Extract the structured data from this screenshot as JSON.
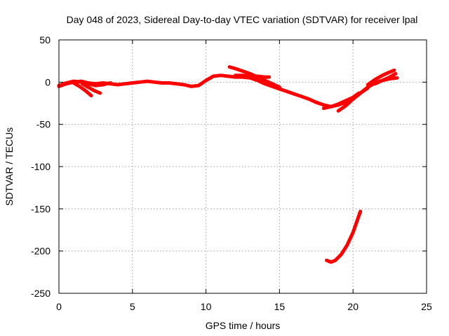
{
  "chart_data": {
    "type": "line",
    "title": "Day 048 of 2023, Sidereal Day-to-day VTEC variation (SDTVAR) for receiver lpal",
    "xlabel": "GPS time / hours",
    "ylabel": "SDTVAR / TECUs",
    "xlim": [
      0,
      25
    ],
    "ylim": [
      -250,
      50
    ],
    "xticks": [
      0,
      5,
      10,
      15,
      20,
      25
    ],
    "yticks": [
      50,
      0,
      -50,
      -100,
      -150,
      -200,
      -250
    ],
    "grid": true,
    "legend": "none",
    "series_color": "#ff0000",
    "series": [
      {
        "x": [
          0.0,
          0.5,
          1.0,
          1.5,
          2.0,
          2.5,
          3.0,
          3.5,
          4.0,
          4.5,
          5.0,
          5.5,
          6.0,
          6.5,
          7.0,
          7.5,
          8.0,
          8.5,
          9.0,
          9.5,
          10.0,
          10.5,
          11.0,
          11.5,
          12.0,
          12.5,
          13.0,
          13.5,
          14.0,
          14.5,
          15.0,
          15.5,
          16.0,
          16.5,
          17.0,
          17.5,
          18.0,
          18.5,
          19.0,
          19.5,
          20.0,
          20.5,
          21.0,
          21.5,
          22.0,
          22.5,
          23.0
        ],
        "values": [
          -5,
          -2,
          0,
          1,
          -1,
          -2,
          -1,
          -2,
          -3,
          -2,
          -1,
          0,
          1,
          0,
          -1,
          -1,
          -2,
          -3,
          -5,
          -4,
          2,
          7,
          8,
          7,
          6,
          6,
          5,
          2,
          -2,
          -5,
          -8,
          -11,
          -14,
          -17,
          -20,
          -24,
          -27,
          -29,
          -27,
          -24,
          -20,
          -13,
          -6,
          -1,
          2,
          4,
          5
        ]
      },
      {
        "x": [
          0.0,
          0.5,
          1.0,
          1.5,
          2.0,
          2.5,
          3.0,
          3.5
        ],
        "values": [
          -4,
          -1,
          1,
          0,
          -2,
          -4,
          -3,
          -1
        ]
      },
      {
        "x": [
          1.0,
          1.4,
          1.8,
          2.2
        ],
        "values": [
          -1,
          -5,
          -10,
          -16
        ]
      },
      {
        "x": [
          1.6,
          2.0,
          2.4,
          2.8
        ],
        "values": [
          -2,
          -6,
          -10,
          -13
        ]
      },
      {
        "x": [
          11.6,
          12.0,
          12.5,
          13.0,
          13.5,
          14.0,
          14.5,
          15.0
        ],
        "values": [
          18,
          16,
          13,
          10,
          6,
          2,
          -2,
          -6
        ]
      },
      {
        "x": [
          12.0,
          12.5,
          13.0,
          13.5,
          14.0,
          14.3
        ],
        "values": [
          8,
          8,
          7,
          7,
          6,
          6
        ]
      },
      {
        "x": [
          18.0,
          18.5,
          19.0,
          19.5,
          20.0,
          20.4
        ],
        "values": [
          -31,
          -29,
          -26,
          -22,
          -18,
          -13
        ]
      },
      {
        "x": [
          19.0,
          19.5,
          20.0,
          20.5,
          21.0
        ],
        "values": [
          -34,
          -28,
          -20,
          -13,
          -7
        ]
      },
      {
        "x": [
          21.0,
          21.5,
          22.0,
          22.5,
          22.8
        ],
        "values": [
          -3,
          3,
          8,
          12,
          14
        ]
      },
      {
        "x": [
          21.5,
          22.0,
          22.5,
          22.9
        ],
        "values": [
          -2,
          2,
          6,
          10
        ]
      },
      {
        "x": [
          18.2,
          18.5,
          18.8,
          19.2,
          19.6,
          20.0,
          20.3,
          20.5
        ],
        "values": [
          -211,
          -213,
          -211,
          -204,
          -193,
          -178,
          -163,
          -153
        ]
      }
    ]
  }
}
